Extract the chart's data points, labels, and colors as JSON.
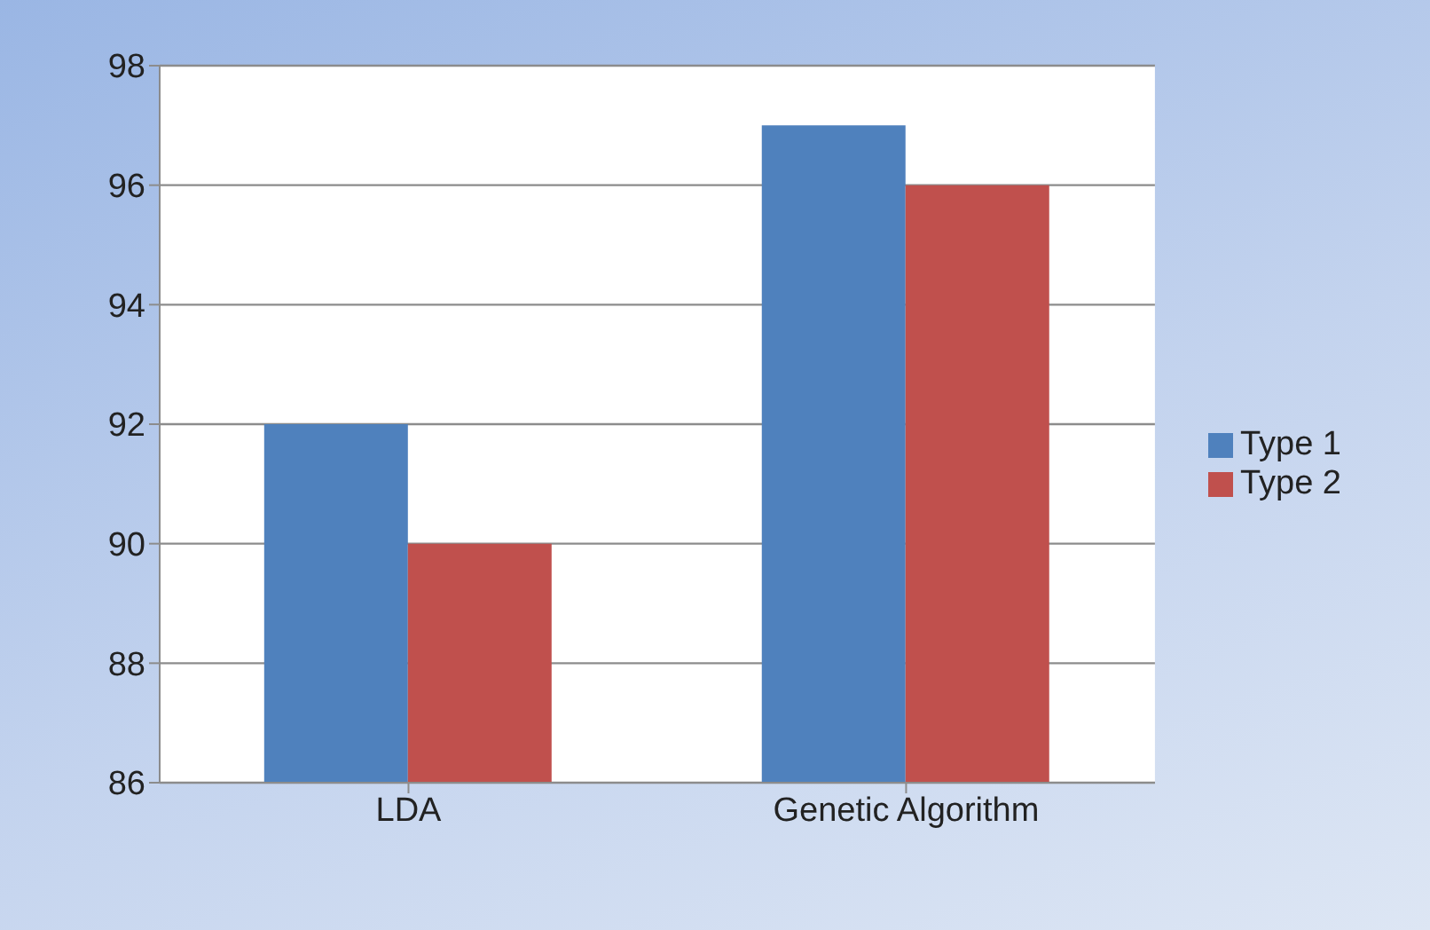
{
  "chart_data": {
    "type": "bar",
    "categories": [
      "LDA",
      "Genetic Algorithm"
    ],
    "series": [
      {
        "name": "Type 1",
        "color": "#4f81bd",
        "values": [
          92,
          97
        ]
      },
      {
        "name": "Type 2",
        "color": "#c0504d",
        "values": [
          90,
          96
        ]
      }
    ],
    "ylim": [
      86,
      98
    ],
    "yticks": [
      86,
      88,
      90,
      92,
      94,
      96,
      98
    ],
    "grid": "y",
    "legend": "right"
  }
}
